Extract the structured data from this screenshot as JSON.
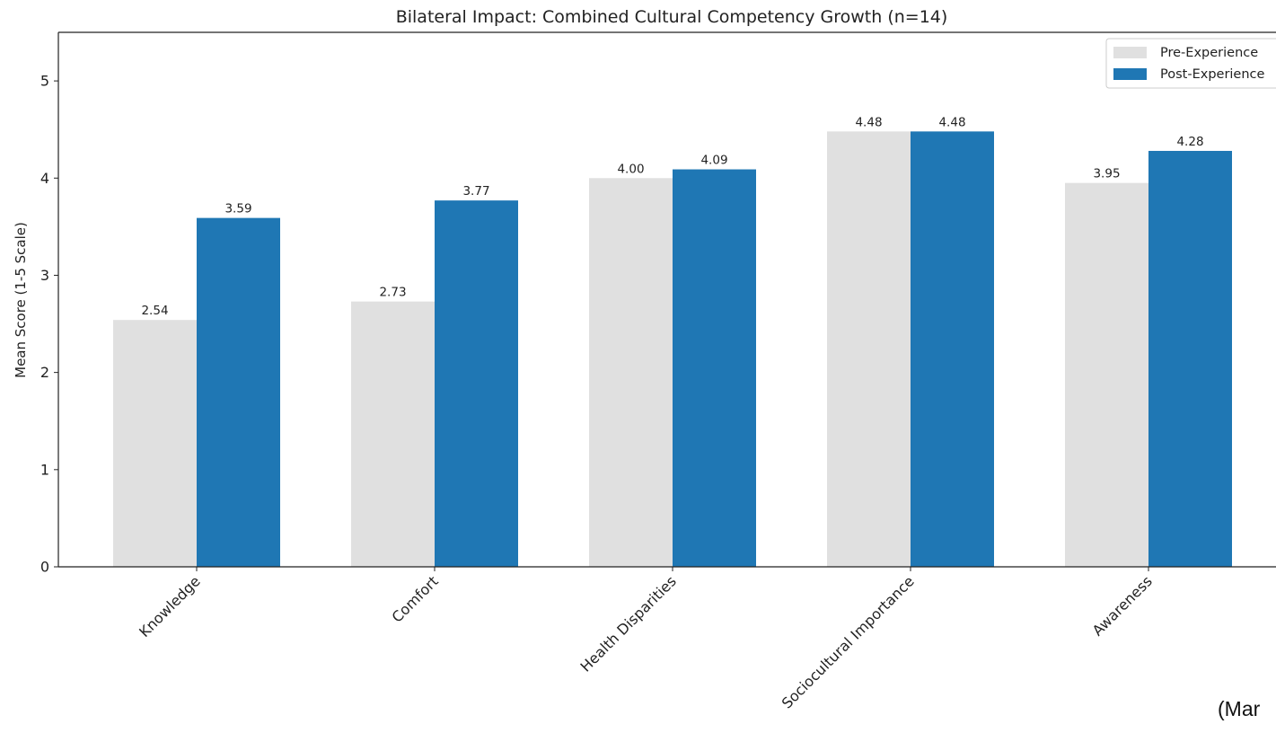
{
  "chart_data": {
    "type": "bar",
    "title": "Bilateral Impact: Combined Cultural Competency Growth (n=14)",
    "xlabel": "",
    "ylabel": "Mean Score (1-5 Scale)",
    "ylim": [
      0,
      5.5
    ],
    "yticks": [
      0,
      1,
      2,
      3,
      4,
      5
    ],
    "categories": [
      "Knowledge",
      "Comfort",
      "Health Disparities",
      "Sociocultural Importance",
      "Awareness"
    ],
    "series": [
      {
        "name": "Pre-Experience",
        "color": "#e0e0e0",
        "values": [
          2.54,
          2.73,
          4.0,
          4.48,
          3.95
        ],
        "labels": [
          "2.54",
          "2.73",
          "4.00",
          "4.48",
          "3.95"
        ]
      },
      {
        "name": "Post-Experience",
        "color": "#1f77b4",
        "values": [
          3.59,
          3.77,
          4.09,
          4.48,
          4.28
        ],
        "labels": [
          "3.59",
          "3.77",
          "4.09",
          "4.48",
          "4.28"
        ]
      }
    ],
    "legend_position": "top-right",
    "grid": false
  },
  "footer_text": "(Mar"
}
